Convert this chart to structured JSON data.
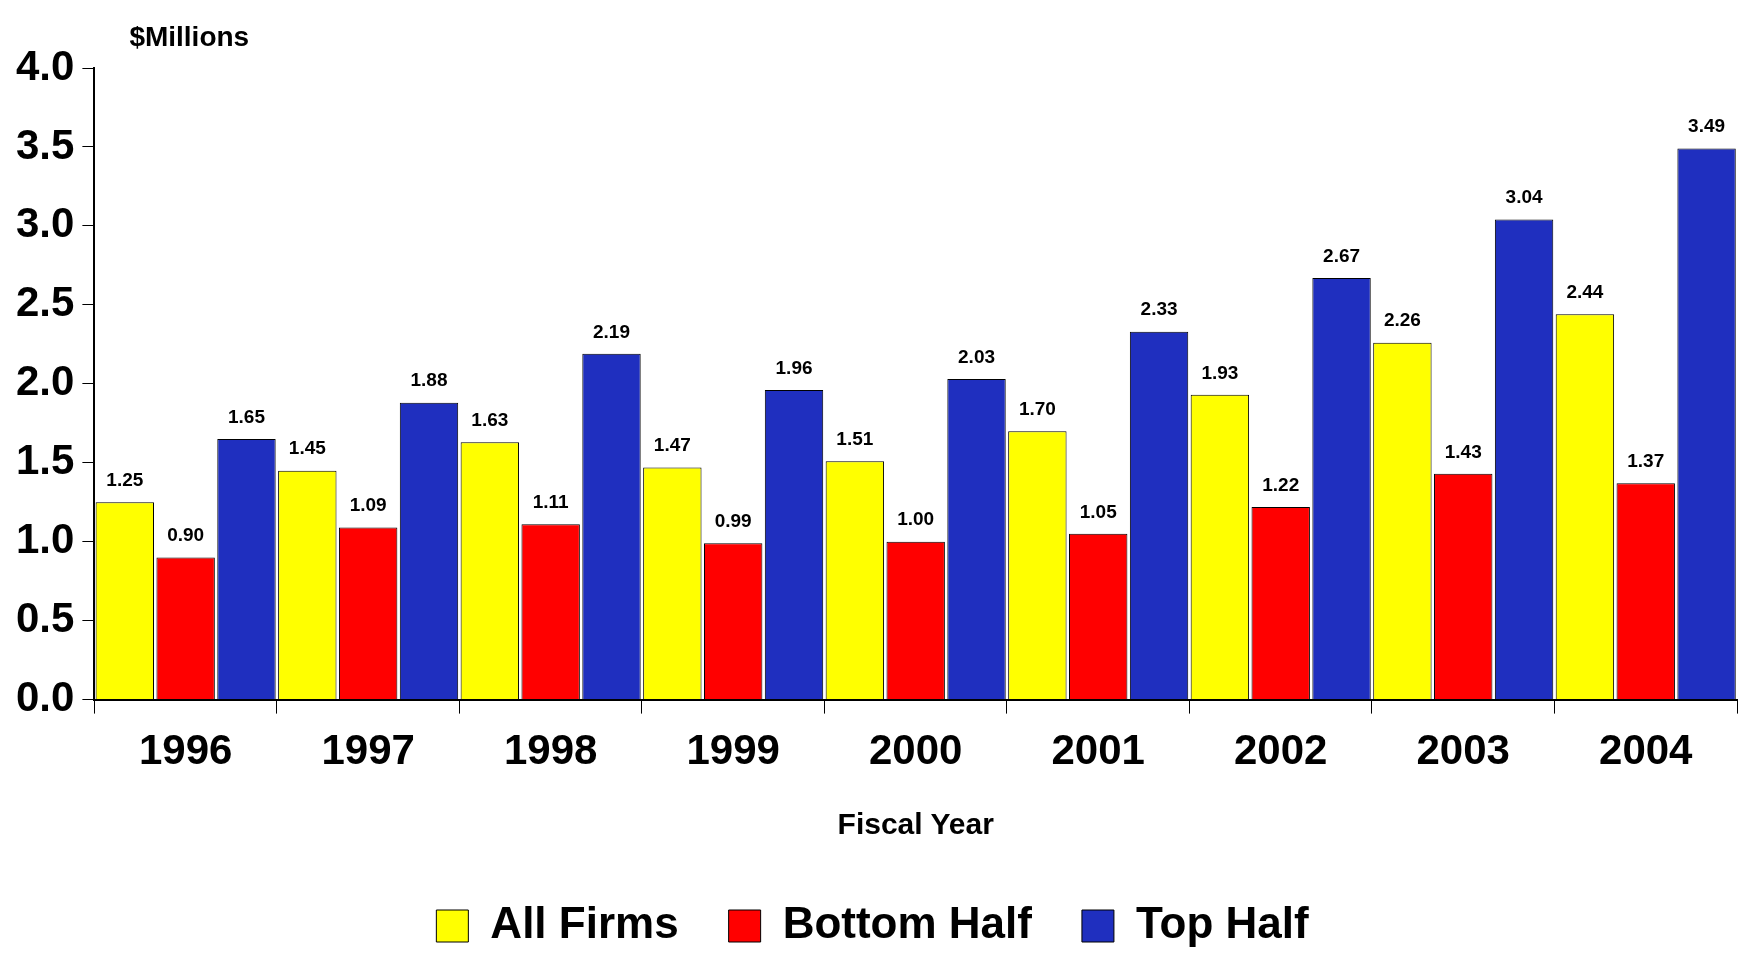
{
  "chart_data": {
    "type": "bar",
    "ylabel": "$Millions",
    "xlabel": "Fiscal Year",
    "categories": [
      "1996",
      "1997",
      "1998",
      "1999",
      "2000",
      "2001",
      "2002",
      "2003",
      "2004"
    ],
    "series": [
      {
        "name": "All Firms",
        "color": "#ffff00",
        "values": [
          1.25,
          1.45,
          1.63,
          1.47,
          1.51,
          1.7,
          1.93,
          2.26,
          2.44
        ],
        "value_labels": [
          "1.25",
          "1.45",
          "1.63",
          "1.47",
          "1.51",
          "1.70",
          "1.93",
          "2.26",
          "2.44"
        ]
      },
      {
        "name": "Bottom Half",
        "color": "#ff0000",
        "values": [
          0.9,
          1.09,
          1.11,
          0.99,
          1.0,
          1.05,
          1.22,
          1.43,
          1.37
        ],
        "value_labels": [
          "0.90",
          "1.09",
          "1.11",
          "0.99",
          "1.00",
          "1.05",
          "1.22",
          "1.43",
          "1.37"
        ]
      },
      {
        "name": "Top Half",
        "color": "#1f2fbf",
        "values": [
          1.65,
          1.88,
          2.19,
          1.96,
          2.03,
          2.33,
          2.67,
          3.04,
          3.49
        ],
        "value_labels": [
          "1.65",
          "1.88",
          "2.19",
          "1.96",
          "2.03",
          "2.33",
          "2.67",
          "3.04",
          "3.49"
        ]
      }
    ],
    "ylim": [
      0,
      4.0
    ],
    "yticks": [
      "0.0",
      "0.5",
      "1.0",
      "1.5",
      "2.0",
      "2.5",
      "3.0",
      "3.5",
      "4.0"
    ],
    "grid": false,
    "legend": "bottom"
  }
}
